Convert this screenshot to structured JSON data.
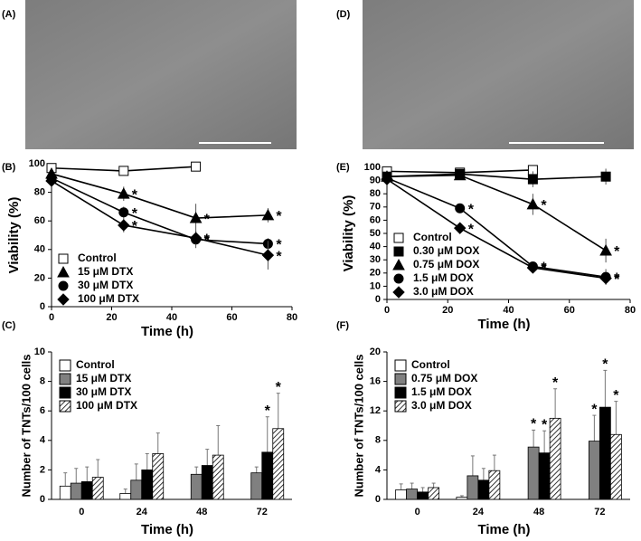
{
  "images": [
    {
      "label": "(A)"
    },
    {
      "label": "(D)"
    }
  ],
  "chart_data": [
    {
      "type": "line",
      "panel_label": "(B)",
      "ylabel": "Viability (%)",
      "xlabel": "Time (h)",
      "xlim": [
        0,
        80
      ],
      "xticks": [
        0,
        20,
        40,
        60,
        80
      ],
      "ylim": [
        0,
        100
      ],
      "yticks": [
        0,
        20,
        40,
        60,
        80,
        100
      ],
      "legend": "lower left",
      "series": [
        {
          "name": "Control",
          "marker": "square-open",
          "color": "#000000",
          "x": [
            0,
            24,
            48
          ],
          "values": [
            97,
            95,
            98
          ],
          "errors": [
            3,
            3,
            3
          ],
          "significance": [
            null,
            null,
            null
          ]
        },
        {
          "name": "15 μM DTX",
          "marker": "triangle",
          "color": "#000000",
          "x": [
            0,
            24,
            48,
            72
          ],
          "values": [
            93,
            79,
            62,
            64
          ],
          "errors": [
            3,
            5,
            10,
            5
          ],
          "significance": [
            null,
            "*",
            "*",
            "*"
          ]
        },
        {
          "name": "30 μM DTX",
          "marker": "circle",
          "color": "#000000",
          "x": [
            0,
            24,
            48,
            72
          ],
          "values": [
            90,
            66,
            47,
            44
          ],
          "errors": [
            3,
            4,
            6,
            4
          ],
          "significance": [
            null,
            "*",
            "*",
            "*"
          ]
        },
        {
          "name": "100 μM DTX",
          "marker": "diamond",
          "color": "#000000",
          "x": [
            0,
            24,
            48,
            72
          ],
          "values": [
            88,
            57,
            48,
            36
          ],
          "errors": [
            3,
            5,
            5,
            10
          ],
          "significance": [
            null,
            "*",
            "*",
            "*"
          ]
        }
      ]
    },
    {
      "type": "bar",
      "panel_label": "(C)",
      "ylabel": "Number of TNTs/100 cells",
      "xlabel": "Time (h)",
      "categories": [
        "0",
        "24",
        "48",
        "72"
      ],
      "ylim": [
        0,
        10
      ],
      "yticks": [
        0,
        2,
        4,
        6,
        8,
        10
      ],
      "legend": "upper left",
      "series": [
        {
          "name": "Control",
          "color": "#ffffff",
          "values": [
            0.9,
            0.4,
            null,
            null
          ],
          "errors": [
            0.9,
            0.3,
            null,
            null
          ],
          "significance": [
            null,
            null,
            null,
            null
          ]
        },
        {
          "name": "15 μM DTX",
          "color": "#808080",
          "values": [
            1.1,
            1.3,
            1.7,
            1.8
          ],
          "errors": [
            1.0,
            1.1,
            0.5,
            0.4
          ],
          "significance": [
            null,
            null,
            null,
            null
          ]
        },
        {
          "name": "30 μM DTX",
          "color": "#000000",
          "values": [
            1.2,
            2.0,
            2.3,
            3.2
          ],
          "errors": [
            1.0,
            1.1,
            1.1,
            2.4
          ],
          "significance": [
            null,
            null,
            null,
            "*"
          ]
        },
        {
          "name": "100 μM DTX",
          "color": "#ffffff",
          "pattern": "hatch",
          "values": [
            1.5,
            3.1,
            3.0,
            4.8
          ],
          "errors": [
            1.2,
            1.4,
            2.0,
            2.4
          ],
          "significance": [
            null,
            null,
            null,
            "*"
          ]
        }
      ]
    },
    {
      "type": "line",
      "panel_label": "(E)",
      "ylabel": "Viability (%)",
      "xlabel": "Time (h)",
      "xlim": [
        0,
        80
      ],
      "xticks": [
        0,
        20,
        40,
        60,
        80
      ],
      "ylim": [
        0,
        100
      ],
      "yticks": [
        0,
        10,
        20,
        30,
        40,
        50,
        60,
        70,
        80,
        90,
        100
      ],
      "legend": "lower left",
      "series": [
        {
          "name": "Control",
          "marker": "square-open",
          "color": "#000000",
          "x": [
            0,
            24,
            48
          ],
          "values": [
            97,
            96,
            98
          ],
          "errors": [
            2,
            2,
            2
          ],
          "significance": [
            null,
            null,
            null
          ]
        },
        {
          "name": "0.30 μM DOX",
          "marker": "square",
          "color": "#000000",
          "x": [
            0,
            24,
            48,
            72
          ],
          "values": [
            93,
            95,
            91,
            93
          ],
          "errors": [
            3,
            3,
            6,
            6
          ],
          "significance": [
            null,
            null,
            null,
            null
          ]
        },
        {
          "name": "0.75 μM DOX",
          "marker": "triangle",
          "color": "#000000",
          "x": [
            0,
            24,
            48,
            72
          ],
          "values": [
            93,
            94,
            72,
            37
          ],
          "errors": [
            3,
            3,
            8,
            9
          ],
          "significance": [
            null,
            null,
            "*",
            "*"
          ]
        },
        {
          "name": "1.5 μM DOX",
          "marker": "circle",
          "color": "#000000",
          "x": [
            0,
            24,
            48,
            72
          ],
          "values": [
            92,
            69,
            25,
            17
          ],
          "errors": [
            3,
            3,
            3,
            6
          ],
          "significance": [
            null,
            "*",
            "*",
            "*"
          ]
        },
        {
          "name": "3.0 μM DOX",
          "marker": "diamond",
          "color": "#000000",
          "x": [
            0,
            24,
            48,
            72
          ],
          "values": [
            91,
            54,
            24,
            16
          ],
          "errors": [
            3,
            3,
            3,
            4
          ],
          "significance": [
            null,
            "*",
            "*",
            "*"
          ]
        }
      ]
    },
    {
      "type": "bar",
      "panel_label": "(F)",
      "ylabel": "Number of TNTs/100 cells",
      "xlabel": "Time (h)",
      "categories": [
        "0",
        "24",
        "48",
        "72"
      ],
      "ylim": [
        0,
        20
      ],
      "yticks": [
        0,
        4,
        8,
        12,
        16,
        20
      ],
      "legend": "upper left",
      "series": [
        {
          "name": "Control",
          "color": "#ffffff",
          "values": [
            1.3,
            0.3,
            null,
            null
          ],
          "errors": [
            0.8,
            0.2,
            null,
            null
          ],
          "significance": [
            null,
            null,
            null,
            null
          ]
        },
        {
          "name": "0.75 μM DOX",
          "color": "#808080",
          "values": [
            1.4,
            3.2,
            7.1,
            7.9
          ],
          "errors": [
            0.8,
            2.7,
            2.3,
            3.5
          ],
          "significance": [
            null,
            null,
            "*",
            "*"
          ]
        },
        {
          "name": "1.5 μM DOX",
          "color": "#000000",
          "values": [
            1.0,
            2.6,
            6.3,
            12.5
          ],
          "errors": [
            0.6,
            1.6,
            3.0,
            5.0
          ],
          "significance": [
            null,
            null,
            "*",
            "*"
          ]
        },
        {
          "name": "3.0 μM DOX",
          "color": "#ffffff",
          "pattern": "hatch",
          "values": [
            1.6,
            3.9,
            11.0,
            8.8
          ],
          "errors": [
            0.6,
            2.1,
            4.0,
            4.5
          ],
          "significance": [
            null,
            null,
            "*",
            "*"
          ]
        }
      ]
    }
  ]
}
